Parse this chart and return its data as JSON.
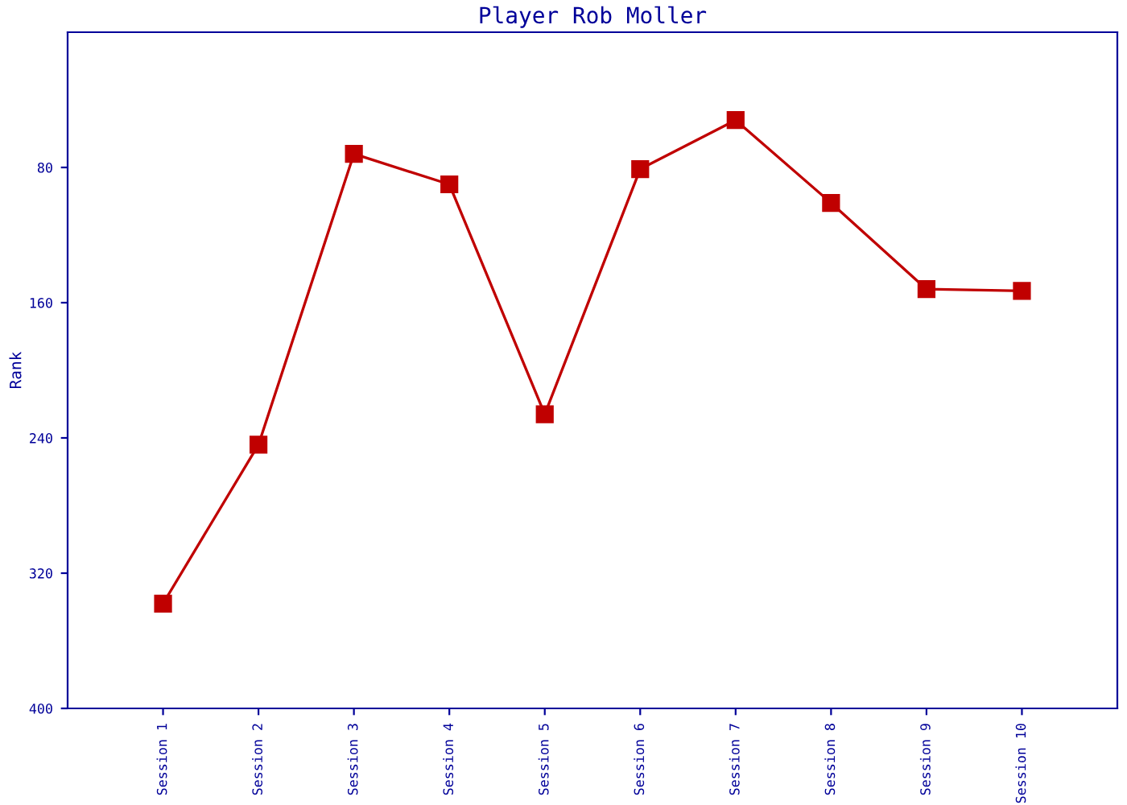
{
  "chart_data": {
    "type": "line",
    "title": "Player Rob Moller",
    "ylabel": "Rank",
    "categories": [
      "Session 1",
      "Session 2",
      "Session 3",
      "Session 4",
      "Session 5",
      "Session 6",
      "Session 7",
      "Session 8",
      "Session 9",
      "Session 10"
    ],
    "series": [
      {
        "color": "#c00000",
        "values": [
          338,
          244,
          72,
          90,
          226,
          81,
          52,
          101,
          152,
          153
        ]
      }
    ],
    "ylim": [
      400,
      0
    ],
    "yticks": [
      80,
      160,
      240,
      320,
      400
    ],
    "grid": false,
    "marker": "square",
    "line_style": "solid"
  }
}
